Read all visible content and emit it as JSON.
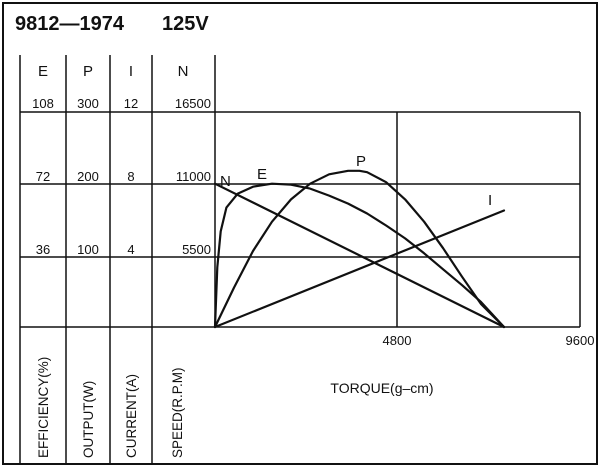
{
  "chart_data": {
    "type": "line",
    "title_model": "9812—1974",
    "title_voltage": "125V",
    "xlabel": "TORQUE(g–cm)",
    "x_ticks": [
      "4800",
      "9600"
    ],
    "xlim": [
      0,
      9600
    ],
    "axes": [
      {
        "symbol": "E",
        "label": "EFFICIENCY(%)",
        "ticks": [
          "36",
          "72",
          "108"
        ],
        "max": 108
      },
      {
        "symbol": "P",
        "label": "OUTPUT(W)",
        "ticks": [
          "100",
          "200",
          "300"
        ],
        "max": 300
      },
      {
        "symbol": "I",
        "label": "CURRENT(A)",
        "ticks": [
          "4",
          "8",
          "12"
        ],
        "max": 12
      },
      {
        "symbol": "N",
        "label": "SPEED(R.P.M)",
        "ticks": [
          "5500",
          "11000",
          "16500"
        ],
        "max": 16500
      }
    ],
    "series": [
      {
        "name": "N",
        "axis": 3,
        "x": [
          0,
          7600
        ],
        "y": [
          11000,
          0
        ]
      },
      {
        "name": "E",
        "axis": 0,
        "x": [
          0,
          60,
          150,
          300,
          600,
          1000,
          1500,
          2000,
          2500,
          3000,
          3500,
          4000,
          4500,
          5000,
          5500,
          6000,
          6500,
          7000,
          7600
        ],
        "y": [
          0,
          30,
          48,
          60,
          67,
          70.5,
          72,
          71.5,
          69.5,
          66,
          62,
          57,
          51,
          44.5,
          37,
          29,
          21,
          12.5,
          0
        ]
      },
      {
        "name": "P",
        "axis": 1,
        "x": [
          0,
          500,
          1000,
          1500,
          2000,
          2500,
          3000,
          3500,
          3800,
          4000,
          4500,
          5000,
          5500,
          6000,
          6500,
          7000,
          7600
        ],
        "y": [
          0,
          55,
          106,
          147,
          178,
          200,
          213,
          218,
          218,
          216,
          202,
          178,
          147,
          110,
          70,
          32,
          0
        ]
      },
      {
        "name": "I",
        "axis": 2,
        "x": [
          0,
          7600
        ],
        "y": [
          0,
          6.5
        ]
      }
    ]
  }
}
